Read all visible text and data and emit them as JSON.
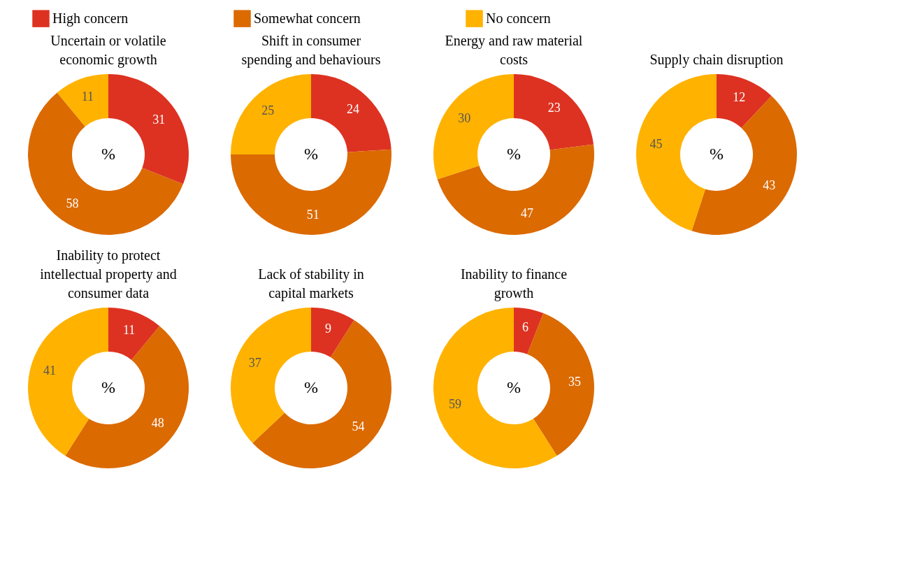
{
  "chart_data": [
    {
      "type": "donut",
      "title": "Uncertain or volatile economic growth",
      "categories": [
        "High concern",
        "Somewhat concern",
        "No concern"
      ],
      "values": [
        31,
        58,
        11
      ],
      "colors": [
        "#dd3222",
        "#db6a00",
        "#ffb200"
      ],
      "data_labels": true,
      "annotations": [
        "%"
      ],
      "legend": "top"
    },
    {
      "type": "donut",
      "title": "Shift in consumer spending and behaviours",
      "values": [
        24,
        51,
        25
      ],
      "colors": [
        "#dd3222",
        "#db6a00",
        "#ffb200"
      ],
      "data_labels": true,
      "annotations": [
        "%"
      ]
    },
    {
      "type": "donut",
      "title": "Energy and raw material costs",
      "values": [
        23,
        47,
        30
      ],
      "colors": [
        "#dd3222",
        "#db6a00",
        "#ffb200"
      ],
      "data_labels": true,
      "annotations": [
        "%"
      ]
    },
    {
      "type": "donut",
      "title": "Supply chain disruption",
      "values": [
        12,
        43,
        45
      ],
      "colors": [
        "#dd3222",
        "#db6a00",
        "#ffb200"
      ],
      "data_labels": true,
      "annotations": [
        "%"
      ]
    },
    {
      "type": "donut",
      "title": "Inability to protect intellectual property and consumer data",
      "values": [
        11,
        48,
        41
      ],
      "colors": [
        "#dd3222",
        "#db6a00",
        "#ffb200"
      ],
      "data_labels": true,
      "annotations": [
        "%"
      ]
    },
    {
      "type": "donut",
      "title": "Lack of stability in capital markets",
      "values": [
        9,
        54,
        37
      ],
      "colors": [
        "#dd3222",
        "#db6a00",
        "#ffb200"
      ],
      "data_labels": true,
      "annotations": [
        "%"
      ]
    },
    {
      "type": "donut",
      "title": "Inability to finance growth",
      "values": [
        6,
        35,
        59
      ],
      "colors": [
        "#dd3222",
        "#db6a00",
        "#ffb200"
      ],
      "data_labels": true,
      "annotations": [
        "%"
      ]
    }
  ]
}
